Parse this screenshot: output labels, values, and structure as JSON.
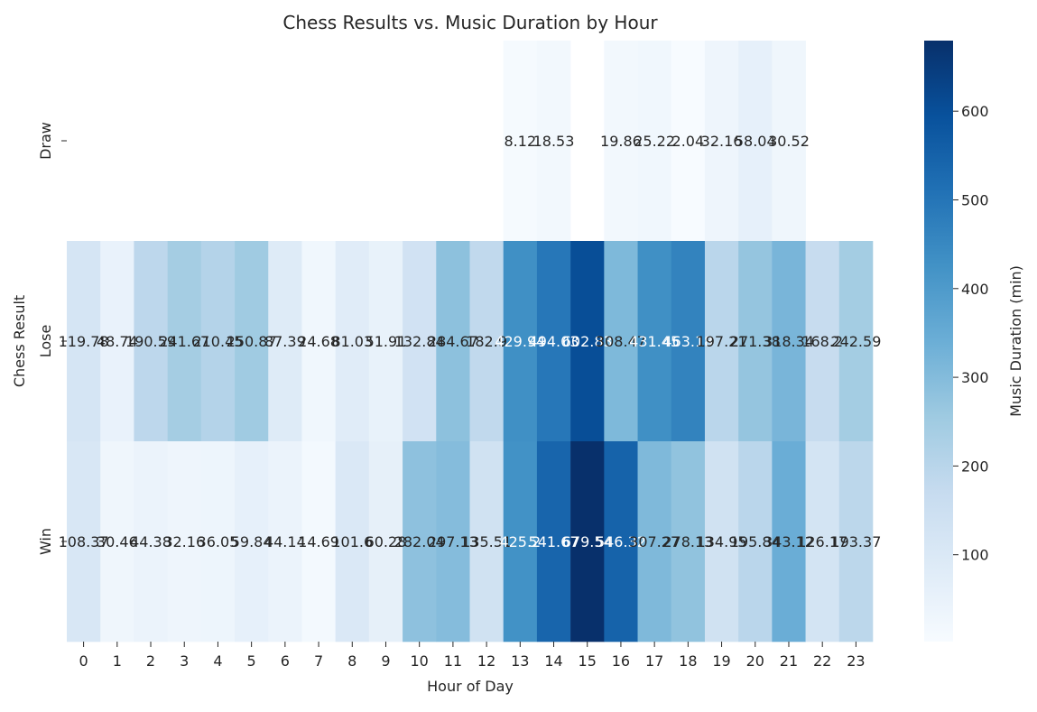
{
  "chart_data": {
    "type": "heatmap",
    "title": "Chess Results vs. Music Duration by Hour",
    "xlabel": "Hour of Day",
    "ylabel": "Chess Result",
    "x": [
      "0",
      "1",
      "2",
      "3",
      "4",
      "5",
      "6",
      "7",
      "8",
      "9",
      "10",
      "11",
      "12",
      "13",
      "14",
      "15",
      "16",
      "17",
      "18",
      "19",
      "20",
      "21",
      "22",
      "23"
    ],
    "y": [
      "Draw",
      "Lose",
      "Win"
    ],
    "values": [
      [
        null,
        null,
        null,
        null,
        null,
        null,
        null,
        null,
        null,
        null,
        null,
        null,
        null,
        8.12,
        18.53,
        null,
        19.86,
        25.22,
        2.04,
        32.16,
        58.04,
        30.52,
        null,
        null
      ],
      [
        119.78,
        48.74,
        190.59,
        241.67,
        210.45,
        250.87,
        87.39,
        24.68,
        81.03,
        51.91,
        132.84,
        284.67,
        182.9,
        429.94,
        494.03,
        602.83,
        308.47,
        431.45,
        463.18,
        197.21,
        271.38,
        318.34,
        168.2,
        242.59
      ],
      [
        108.37,
        30.46,
        44.38,
        32.16,
        36.05,
        59.84,
        44.14,
        14.69,
        101.6,
        60.28,
        282.04,
        297.13,
        135.51,
        425.2,
        541.67,
        679.54,
        546.32,
        307.27,
        278.13,
        134.95,
        195.84,
        343.12,
        126.17,
        193.37
      ]
    ],
    "value_labels": [
      [
        null,
        null,
        null,
        null,
        null,
        null,
        null,
        null,
        null,
        null,
        null,
        null,
        null,
        "8.12",
        "18.53",
        null,
        "19.86",
        "25.22",
        "2.04",
        "32.16",
        "58.04",
        "30.52",
        null,
        null
      ],
      [
        "119.78",
        "48.74",
        "190.59",
        "241.67",
        "210.45",
        "250.87",
        "87.39",
        "24.68",
        "81.03",
        "51.91",
        "132.84",
        "284.67",
        "182.9",
        "429.94",
        "494.03",
        "602.83",
        "308.47",
        "431.45",
        "463.18",
        "197.21",
        "271.38",
        "318.34",
        "168.2",
        "242.59"
      ],
      [
        "108.37",
        "30.46",
        "44.38",
        "32.16",
        "36.05",
        "59.84",
        "44.14",
        "14.69",
        "101.6",
        "60.28",
        "282.04",
        "297.13",
        "135.51",
        "425.2",
        "541.67",
        "679.54",
        "546.32",
        "307.27",
        "278.13",
        "134.95",
        "195.84",
        "343.12",
        "126.17",
        "193.37"
      ]
    ],
    "colormap": "Blues",
    "colorbar": {
      "label": "Music Duration (min)",
      "min": 2.04,
      "max": 679.54,
      "ticks": [
        100,
        200,
        300,
        400,
        500,
        600
      ],
      "tick_labels": [
        "100",
        "200",
        "300",
        "400",
        "500",
        "600"
      ]
    },
    "grid": false
  }
}
